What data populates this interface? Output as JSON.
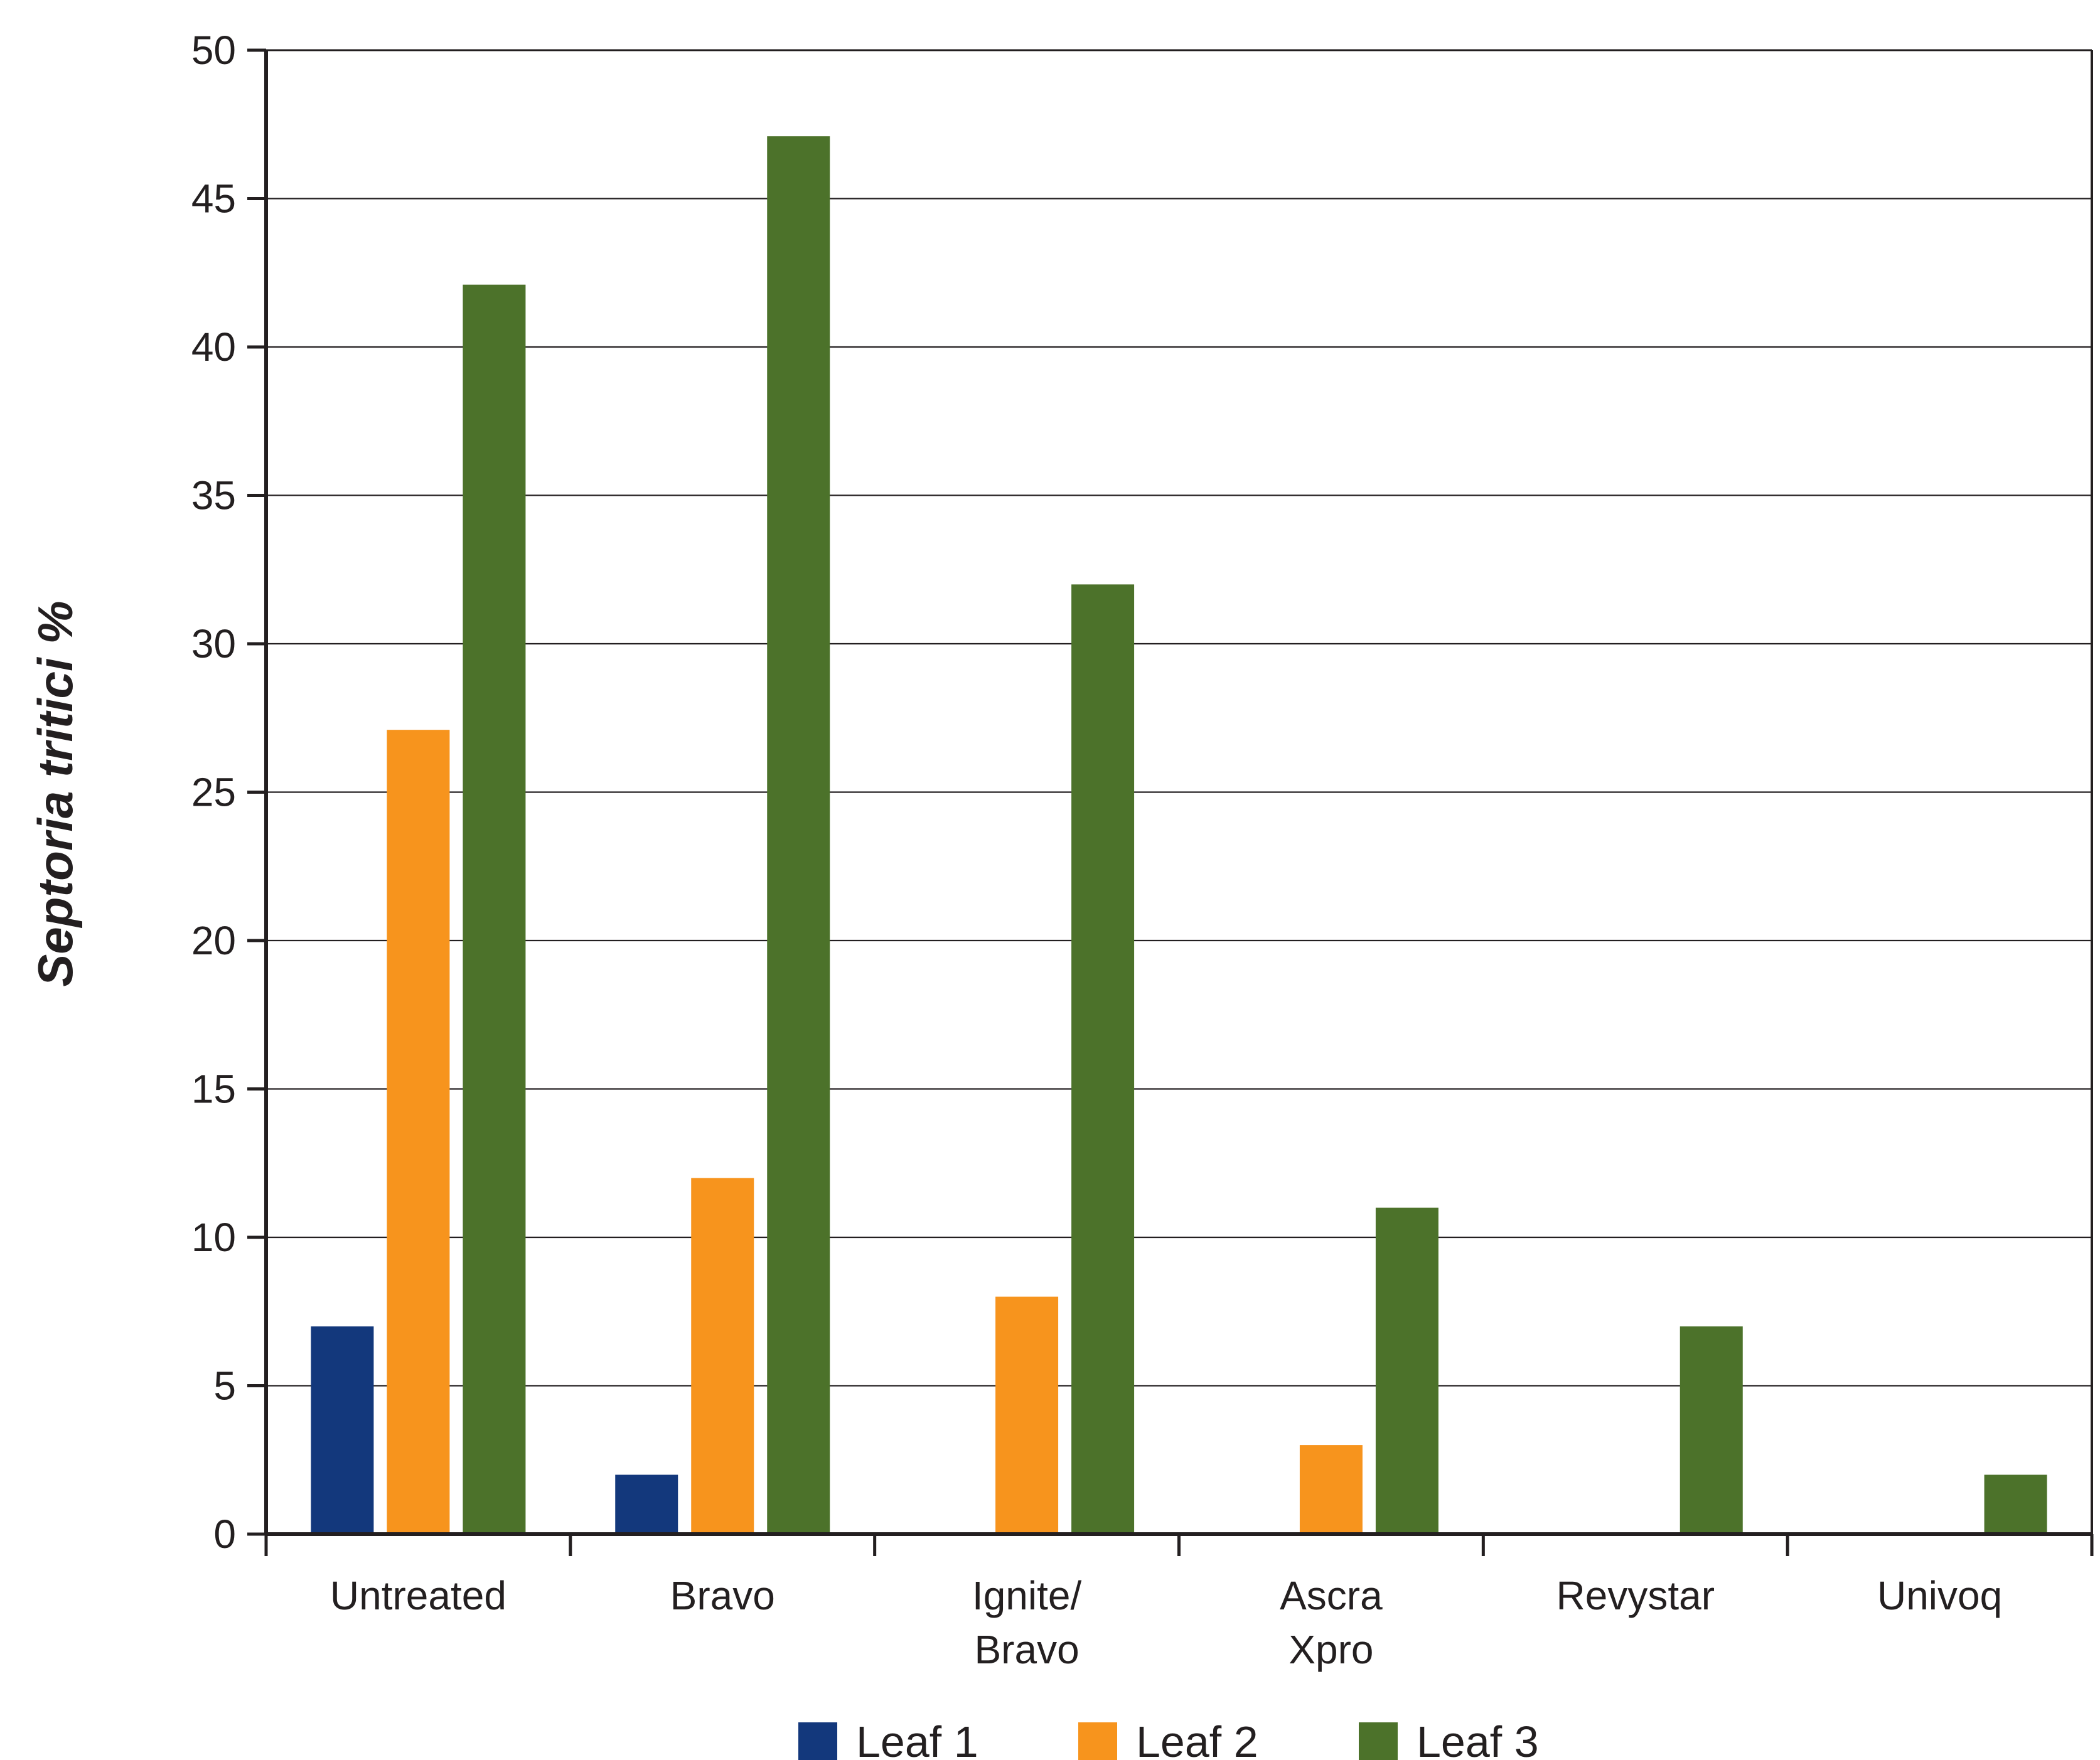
{
  "chart_data": {
    "type": "bar",
    "title": "",
    "xlabel": "",
    "ylabel": "Septoria tritici %",
    "ylim": [
      0,
      50
    ],
    "yticks": [
      0,
      5,
      10,
      15,
      20,
      25,
      30,
      35,
      40,
      45,
      50
    ],
    "categories": [
      [
        "Untreated"
      ],
      [
        "Bravo"
      ],
      [
        "Ignite/",
        "Bravo"
      ],
      [
        "Ascra",
        "Xpro"
      ],
      [
        "Revystar"
      ],
      [
        "Univoq"
      ]
    ],
    "series": [
      {
        "name": "Leaf 1",
        "color": "#13387c",
        "values": [
          7,
          2,
          0,
          0,
          0,
          0
        ]
      },
      {
        "name": "Leaf 2",
        "color": "#f7941d",
        "values": [
          27.1,
          12,
          8,
          3,
          0,
          0
        ]
      },
      {
        "name": "Leaf 3",
        "color": "#4c722a",
        "values": [
          42.1,
          47.1,
          32,
          11,
          7,
          2
        ]
      }
    ],
    "grid": true,
    "legend_position": "bottom"
  }
}
